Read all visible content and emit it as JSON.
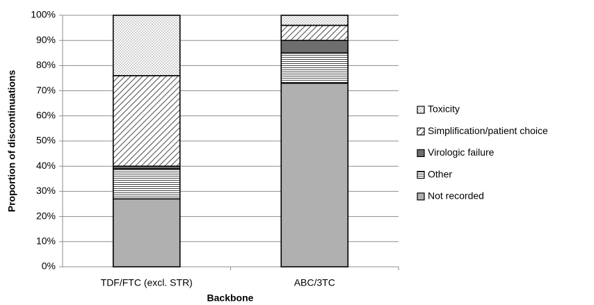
{
  "chart_data": {
    "type": "stacked_bar",
    "x_label": "Backbone",
    "y_label": "Proportion of discontinuations",
    "categories": [
      "TDF/FTC (excl. STR)",
      "ABC/3TC"
    ],
    "series": [
      {
        "name": "Not recorded",
        "color": "#b0b0b0",
        "pattern": "solid",
        "values": [
          27,
          73
        ]
      },
      {
        "name": "Other",
        "color": "#ffffff",
        "pattern": "horizontal",
        "values": [
          12,
          12
        ]
      },
      {
        "name": "Virologic failure",
        "color": "#6e6e6e",
        "pattern": "solid",
        "values": [
          1,
          5
        ]
      },
      {
        "name": "Simplification/patient choice",
        "color": "#ffffff",
        "pattern": "diagonal",
        "values": [
          36,
          6
        ]
      },
      {
        "name": "Toxicity",
        "color": "#ffffff",
        "pattern": "dots",
        "values": [
          24,
          4
        ]
      }
    ],
    "ylim": [
      0,
      100
    ],
    "yticks": [
      {
        "value": 0,
        "label": "0%"
      },
      {
        "value": 10,
        "label": "10%"
      },
      {
        "value": 20,
        "label": "20%"
      },
      {
        "value": 30,
        "label": "30%"
      },
      {
        "value": 40,
        "label": "40%"
      },
      {
        "value": 50,
        "label": "50%"
      },
      {
        "value": 60,
        "label": "60%"
      },
      {
        "value": 70,
        "label": "70%"
      },
      {
        "value": 80,
        "label": "80%"
      },
      {
        "value": 90,
        "label": "90%"
      },
      {
        "value": 100,
        "label": "100%"
      }
    ],
    "grid": true,
    "legend": "right"
  }
}
